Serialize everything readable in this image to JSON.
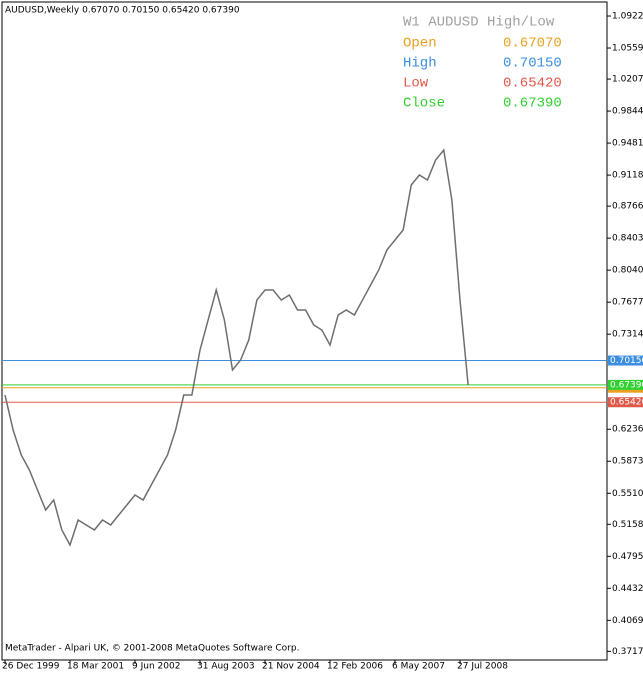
{
  "chart_data": {
    "type": "line",
    "title": "AUDUSD,Weekly  0.67070 0.70150 0.65420 0.67390",
    "footer": "MetaTrader - Alpari UK, © 2001-2008 MetaQuotes Software Corp.",
    "legend_title": "W1 AUDUSD High/Low",
    "categories": [
      "26 Dec 1999",
      null,
      null,
      null,
      null,
      null,
      null,
      null,
      "18 Mar 2001",
      null,
      null,
      null,
      null,
      null,
      null,
      null,
      "9 Jun 2002",
      null,
      null,
      null,
      null,
      null,
      null,
      null,
      "31 Aug 2003",
      null,
      null,
      null,
      null,
      null,
      null,
      null,
      "21 Nov 2004",
      null,
      null,
      null,
      null,
      null,
      null,
      null,
      "12 Feb 2006",
      null,
      null,
      null,
      null,
      null,
      null,
      null,
      "6 May 2007",
      null,
      null,
      null,
      null,
      null,
      null,
      null,
      "27 Jul 2008",
      null
    ],
    "series": [
      {
        "name": "AUDUSD",
        "color": "#6e6e6e",
        "values": [
          0.6624,
          0.6227,
          0.5944,
          0.5774,
          0.5547,
          0.532,
          0.5433,
          0.5093,
          0.4923,
          0.5207,
          0.515,
          0.5093,
          0.5207,
          0.515,
          0.5263,
          0.5377,
          0.549,
          0.5433,
          0.5604,
          0.5774,
          0.5944,
          0.6227,
          0.6624,
          0.6624,
          0.7134,
          0.7475,
          0.7815,
          0.7475,
          0.6908,
          0.7021,
          0.7248,
          0.7701,
          0.7815,
          0.7815,
          0.7701,
          0.7758,
          0.7588,
          0.7588,
          0.7418,
          0.7361,
          0.7191,
          0.7531,
          0.7588,
          0.7531,
          0.7701,
          0.7872,
          0.8042,
          0.8268,
          0.8382,
          0.8495,
          0.9006,
          0.9119,
          0.9062,
          0.9289,
          0.9402,
          0.8835,
          0.7701,
          0.6738
        ]
      }
    ],
    "levels": [
      {
        "name": "Open",
        "color": "#e8a020",
        "value": 0.6707,
        "value_label": "0.67070"
      },
      {
        "name": "High",
        "color": "#3b8ee0",
        "value": 0.7015,
        "value_label": "0.70150"
      },
      {
        "name": "Low",
        "color": "#e0584a",
        "value": 0.6542,
        "value_label": "0.65420"
      },
      {
        "name": "Close",
        "color": "#30d030",
        "value": 0.6739,
        "value_label": "0.67390"
      }
    ],
    "ylim": [
      0.3619,
      1.1081
    ],
    "yticks": [
      {
        "value": 1.0922,
        "label": "1.09220"
      },
      {
        "value": 1.0559,
        "label": "1.05590"
      },
      {
        "value": 1.0207,
        "label": "1.02070"
      },
      {
        "value": 0.9844,
        "label": "0.98440"
      },
      {
        "value": 0.9481,
        "label": "0.94810"
      },
      {
        "value": 0.9118,
        "label": "0.91180"
      },
      {
        "value": 0.8766,
        "label": "0.87660"
      },
      {
        "value": 0.8403,
        "label": "0.84030"
      },
      {
        "value": 0.804,
        "label": "0.80400"
      },
      {
        "value": 0.7677,
        "label": "0.76770"
      },
      {
        "value": 0.7314,
        "label": "0.73140"
      },
      {
        "value": 0.6236,
        "label": "0.62360"
      },
      {
        "value": 0.5873,
        "label": "0.58730"
      },
      {
        "value": 0.551,
        "label": "0.55100"
      },
      {
        "value": 0.5158,
        "label": "0.51580"
      },
      {
        "value": 0.4795,
        "label": "0.47950"
      },
      {
        "value": 0.4432,
        "label": "0.44320"
      },
      {
        "value": 0.4069,
        "label": "0.40690"
      },
      {
        "value": 0.3717,
        "label": "0.37170"
      }
    ]
  }
}
